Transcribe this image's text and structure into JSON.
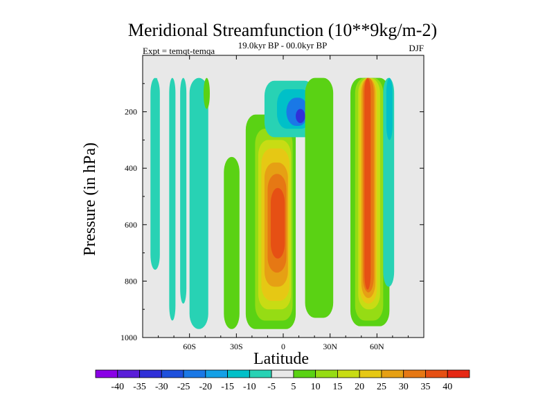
{
  "chart_data": {
    "type": "heatmap",
    "title": "Meridional Streamfunction (10**9kg/m-2)",
    "subtitle": "19.0kyr BP - 00.0kyr BP",
    "left_label": "Expt = temqt-temqa",
    "right_label": "DJF",
    "xlabel": "Latitude",
    "ylabel": "Pressure (in hPa)",
    "x_ticks": [
      "60S",
      "30S",
      "0",
      "30N",
      "60N"
    ],
    "x_tick_values": [
      -60,
      -30,
      0,
      30,
      60
    ],
    "xlim": [
      -90,
      90
    ],
    "y_ticks": [
      "200",
      "400",
      "600",
      "800",
      "1000"
    ],
    "y_tick_values": [
      200,
      400,
      600,
      800,
      1000
    ],
    "ylim": [
      0,
      1000
    ],
    "background_color": "#e8e8e8",
    "colorbar": {
      "levels": [
        -40,
        -35,
        -30,
        -25,
        -20,
        -15,
        -10,
        -5,
        5,
        10,
        15,
        20,
        25,
        30,
        35,
        40
      ],
      "labels": [
        "-40",
        "-35",
        "-30",
        "-25",
        "-20",
        "-15",
        "-10",
        "-5",
        "5",
        "10",
        "15",
        "20",
        "25",
        "30",
        "35",
        "40"
      ],
      "colors": [
        "#8a00e6",
        "#5a1ed8",
        "#3030d8",
        "#1e50dc",
        "#1a78e6",
        "#14a0e6",
        "#00c0c8",
        "#28d2b4",
        "#e8e8e8",
        "#5ad214",
        "#96dc14",
        "#c8dc14",
        "#e6c814",
        "#e6a014",
        "#e67814",
        "#e65014",
        "#e62814"
      ]
    },
    "features": [
      {
        "lat_min": -85,
        "lat_max": -79,
        "p_top": 80,
        "p_bottom": 760,
        "value": -7
      },
      {
        "lat_min": -82,
        "lat_max": -80,
        "p_top": 80,
        "p_bottom": 200,
        "value": -7
      },
      {
        "lat_min": -73,
        "lat_max": -69,
        "p_top": 80,
        "p_bottom": 940,
        "value": -7
      },
      {
        "lat_min": -66,
        "lat_max": -62,
        "p_top": 80,
        "p_bottom": 880,
        "value": -7
      },
      {
        "lat_min": -60,
        "lat_max": -48,
        "p_top": 80,
        "p_bottom": 970,
        "value": -7
      },
      {
        "lat_min": -51,
        "lat_max": -47,
        "p_top": 80,
        "p_bottom": 190,
        "value": 7
      },
      {
        "lat_min": -38,
        "lat_max": -28,
        "p_top": 360,
        "p_bottom": 970,
        "value": 7
      },
      {
        "lat_min": -24,
        "lat_max": 8,
        "p_top": 210,
        "p_bottom": 970,
        "value": 7
      },
      {
        "lat_min": -18,
        "lat_max": 6,
        "p_top": 260,
        "p_bottom": 940,
        "value": 12
      },
      {
        "lat_min": -16,
        "lat_max": 5,
        "p_top": 300,
        "p_bottom": 900,
        "value": 17
      },
      {
        "lat_min": -14,
        "lat_max": 4,
        "p_top": 330,
        "p_bottom": 870,
        "value": 22
      },
      {
        "lat_min": -12,
        "lat_max": 3,
        "p_top": 380,
        "p_bottom": 820,
        "value": 27
      },
      {
        "lat_min": -10,
        "lat_max": 2,
        "p_top": 420,
        "p_bottom": 770,
        "value": 32
      },
      {
        "lat_min": -8,
        "lat_max": 1,
        "p_top": 470,
        "p_bottom": 720,
        "value": 37
      },
      {
        "lat_min": -12,
        "lat_max": 20,
        "p_top": 90,
        "p_bottom": 290,
        "value": -7
      },
      {
        "lat_min": -4,
        "lat_max": 18,
        "p_top": 120,
        "p_bottom": 260,
        "value": -12
      },
      {
        "lat_min": 2,
        "lat_max": 16,
        "p_top": 150,
        "p_bottom": 250,
        "value": -22
      },
      {
        "lat_min": 8,
        "lat_max": 14,
        "p_top": 190,
        "p_bottom": 240,
        "value": -32
      },
      {
        "lat_min": 16,
        "lat_max": 30,
        "p_top": 240,
        "p_bottom": 880,
        "value": -7
      },
      {
        "lat_min": 20,
        "lat_max": 27,
        "p_top": 300,
        "p_bottom": 780,
        "value": -12
      },
      {
        "lat_min": 14,
        "lat_max": 32,
        "p_top": 80,
        "p_bottom": 930,
        "value": 7
      },
      {
        "lat_min": 43,
        "lat_max": 68,
        "p_top": 80,
        "p_bottom": 960,
        "value": 7
      },
      {
        "lat_min": 46,
        "lat_max": 64,
        "p_top": 80,
        "p_bottom": 940,
        "value": 12
      },
      {
        "lat_min": 48,
        "lat_max": 62,
        "p_top": 80,
        "p_bottom": 900,
        "value": 17
      },
      {
        "lat_min": 49,
        "lat_max": 60,
        "p_top": 80,
        "p_bottom": 880,
        "value": 22
      },
      {
        "lat_min": 50,
        "lat_max": 59,
        "p_top": 80,
        "p_bottom": 860,
        "value": 27
      },
      {
        "lat_min": 51,
        "lat_max": 58,
        "p_top": 80,
        "p_bottom": 840,
        "value": 32
      },
      {
        "lat_min": 52,
        "lat_max": 56,
        "p_top": 80,
        "p_bottom": 830,
        "value": 37
      },
      {
        "lat_min": 64,
        "lat_max": 71,
        "p_top": 80,
        "p_bottom": 820,
        "value": -7
      },
      {
        "lat_min": 66,
        "lat_max": 70,
        "p_top": 80,
        "p_bottom": 300,
        "value": -12
      }
    ]
  }
}
